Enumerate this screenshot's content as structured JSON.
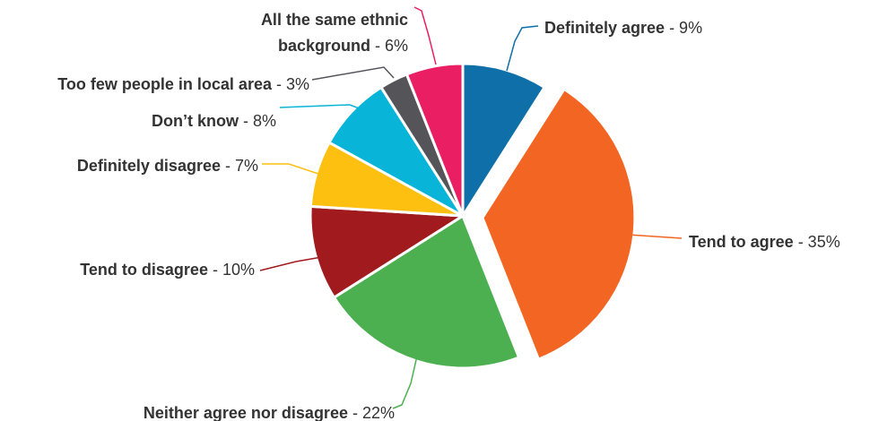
{
  "chart_data": {
    "type": "pie",
    "title": "",
    "legend": "none",
    "start_angle_deg": 0,
    "exploded": [
      "Tend to agree"
    ],
    "slices": [
      {
        "name": "Definitely agree",
        "value": 9,
        "value_label": "9%",
        "color": "#0f6fa8"
      },
      {
        "name": "Tend to agree",
        "value": 35,
        "value_label": "35%",
        "color": "#f26522"
      },
      {
        "name": "Neither agree nor disagree",
        "value": 22,
        "value_label": "22%",
        "color": "#4caf50"
      },
      {
        "name": "Tend to disagree",
        "value": 10,
        "value_label": "10%",
        "color": "#a01a1e"
      },
      {
        "name": "Definitely disagree",
        "value": 7,
        "value_label": "7%",
        "color": "#fdc010"
      },
      {
        "name": "Don’t know",
        "value": 8,
        "value_label": "8%",
        "color": "#08b4d8"
      },
      {
        "name": "Too few people in local area",
        "value": 3,
        "value_label": "3%",
        "color": "#555459"
      },
      {
        "name": "All the same ethnic background",
        "name_lines": [
          "All the same ethnic",
          "background"
        ],
        "value": 6,
        "value_label": "6%",
        "color": "#e91e63"
      }
    ]
  }
}
